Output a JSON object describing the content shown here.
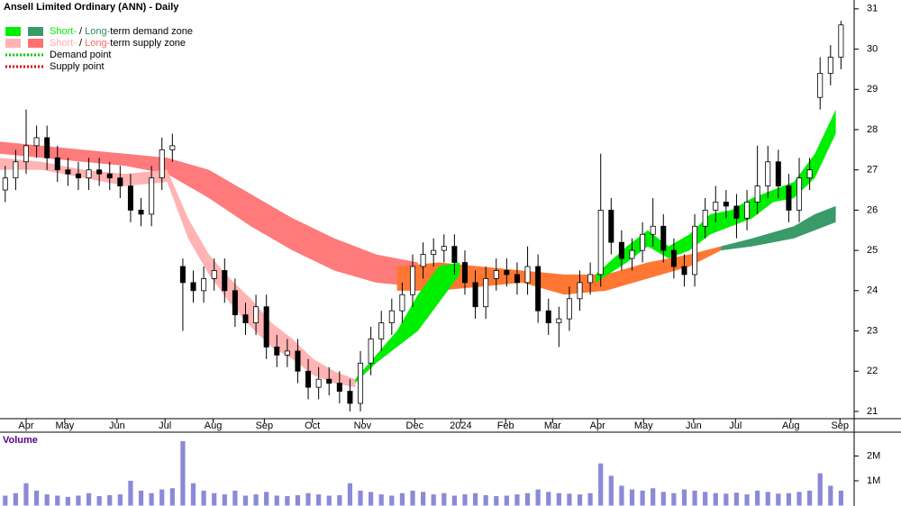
{
  "chart_data": {
    "type": "ohlc",
    "title": "Ansell Limited Ordinary (ANN) - Daily",
    "legend": [
      {
        "parts": [
          {
            "text": "Short-",
            "color": "#00ee00"
          },
          {
            "text": " / ",
            "color": "#000000"
          },
          {
            "text": "Long-",
            "color": "#2e8b57"
          },
          {
            "text": "term demand zone",
            "color": "#000000"
          }
        ],
        "swatches": [
          "#00ee00",
          "#3a9a6a"
        ]
      },
      {
        "parts": [
          {
            "text": "Short-",
            "color": "#ffaaaa"
          },
          {
            "text": " / ",
            "color": "#000000"
          },
          {
            "text": "Long-",
            "color": "#ff6666"
          },
          {
            "text": "term supply zone",
            "color": "#000000"
          }
        ],
        "swatches": [
          "#ffb3b3",
          "#ff7070"
        ]
      },
      {
        "parts": [
          {
            "text": "Demand point",
            "color": "#000000"
          }
        ],
        "dotted": "#00cc00"
      },
      {
        "parts": [
          {
            "text": "Supply point",
            "color": "#000000"
          }
        ],
        "dotted": "#dd0000"
      }
    ],
    "volume_label": "Volume",
    "xlim": [
      0,
      81.5
    ],
    "xticks": [
      {
        "value": 2.5,
        "label": "Apr"
      },
      {
        "value": 6.2,
        "label": "May"
      },
      {
        "value": 11.2,
        "label": "Jun"
      },
      {
        "value": 15.8,
        "label": "Jul"
      },
      {
        "value": 20.4,
        "label": "Aug"
      },
      {
        "value": 25.3,
        "label": "Sep"
      },
      {
        "value": 29.9,
        "label": "Oct"
      },
      {
        "value": 34.7,
        "label": "Nov"
      },
      {
        "value": 39.7,
        "label": "Dec"
      },
      {
        "value": 44.1,
        "label": "2024"
      },
      {
        "value": 48.4,
        "label": "Feb"
      },
      {
        "value": 52.9,
        "label": "Mar"
      },
      {
        "value": 57.2,
        "label": "Apr"
      },
      {
        "value": 61.6,
        "label": "May"
      },
      {
        "value": 66.4,
        "label": "Jun"
      },
      {
        "value": 70.4,
        "label": "Jul"
      },
      {
        "value": 75.7,
        "label": "Aug"
      },
      {
        "value": 80.4,
        "label": "Sep"
      }
    ],
    "ylim": [
      20.82,
      31.22
    ],
    "yticks": [
      21,
      22,
      23,
      24,
      25,
      26,
      27,
      28,
      29,
      30,
      31
    ],
    "vol_ylim": [
      0,
      2960000
    ],
    "vol_ticks": [
      {
        "value": 1000000,
        "label": "1M"
      },
      {
        "value": 2000000,
        "label": "2M"
      }
    ],
    "open": [
      26.5,
      26.8,
      27.2,
      27.6,
      27.8,
      27.3,
      27.0,
      26.9,
      26.8,
      27.0,
      26.9,
      26.8,
      26.6,
      26.0,
      25.9,
      26.8,
      27.5,
      24.6,
      24.2,
      24.0,
      24.3,
      24.5,
      24.0,
      23.4,
      23.2,
      23.6,
      22.6,
      22.4,
      22.5,
      22.0,
      21.6,
      21.8,
      21.7,
      21.5,
      21.2,
      22.2,
      22.8,
      23.2,
      23.5,
      23.9,
      24.6,
      24.9,
      25.0,
      25.1,
      24.7,
      24.2,
      23.6,
      24.3,
      24.5,
      24.4,
      24.2,
      24.6,
      23.5,
      23.2,
      23.3,
      23.8,
      24.2,
      24.4,
      26.0,
      25.2,
      24.8,
      25.0,
      25.4,
      25.6,
      25.0,
      24.6,
      24.4,
      25.6,
      26.0,
      26.2,
      26.1,
      25.8,
      26.2,
      26.6,
      27.2,
      26.6,
      26.0,
      26.8,
      28.8,
      29.4,
      29.8
    ],
    "high": [
      27.1,
      27.5,
      28.5,
      28.1,
      28.1,
      27.6,
      27.3,
      27.2,
      27.3,
      27.3,
      27.2,
      27.1,
      26.9,
      26.3,
      27.1,
      27.8,
      27.9,
      24.8,
      24.5,
      24.6,
      24.8,
      24.8,
      24.3,
      23.7,
      23.9,
      23.9,
      22.9,
      22.8,
      22.8,
      22.3,
      22.1,
      22.1,
      22.0,
      21.8,
      22.5,
      23.1,
      23.5,
      23.8,
      24.2,
      24.9,
      25.2,
      25.3,
      25.4,
      25.4,
      25.0,
      24.5,
      24.6,
      24.8,
      24.8,
      24.7,
      25.1,
      24.9,
      23.8,
      23.6,
      24.1,
      24.5,
      24.7,
      27.4,
      26.3,
      25.5,
      25.3,
      25.7,
      26.3,
      25.9,
      25.3,
      24.9,
      25.9,
      26.3,
      26.6,
      26.5,
      26.4,
      26.5,
      27.6,
      27.6,
      27.5,
      26.9,
      27.3,
      27.3,
      29.8,
      30.1,
      30.7
    ],
    "low": [
      26.2,
      26.5,
      26.9,
      27.3,
      27.0,
      26.7,
      26.6,
      26.5,
      26.5,
      26.6,
      26.5,
      26.3,
      25.7,
      25.6,
      25.6,
      26.5,
      27.2,
      23.0,
      23.7,
      23.7,
      24.0,
      23.7,
      23.1,
      22.9,
      22.9,
      22.3,
      22.1,
      22.1,
      21.7,
      21.3,
      21.3,
      21.4,
      21.2,
      21.0,
      21.0,
      21.9,
      22.5,
      22.9,
      23.2,
      23.6,
      24.3,
      24.6,
      24.7,
      24.4,
      23.9,
      23.3,
      23.3,
      24.0,
      24.1,
      23.9,
      23.9,
      23.2,
      22.9,
      22.6,
      23.0,
      23.5,
      23.9,
      24.1,
      24.9,
      24.5,
      24.5,
      24.7,
      25.1,
      24.7,
      24.3,
      24.1,
      24.1,
      25.3,
      25.7,
      25.8,
      25.3,
      25.5,
      25.9,
      26.3,
      26.3,
      25.7,
      25.7,
      26.5,
      28.5,
      29.1,
      29.5
    ],
    "close": [
      26.8,
      27.2,
      27.6,
      27.8,
      27.3,
      27.0,
      26.9,
      26.8,
      27.0,
      26.9,
      26.8,
      26.6,
      26.0,
      25.9,
      26.8,
      27.5,
      27.6,
      24.2,
      24.0,
      24.3,
      24.5,
      24.0,
      23.4,
      23.2,
      23.6,
      22.6,
      22.4,
      22.5,
      22.0,
      21.6,
      21.8,
      21.7,
      21.5,
      21.2,
      22.2,
      22.8,
      23.2,
      23.5,
      23.9,
      24.6,
      24.9,
      25.0,
      25.1,
      24.7,
      24.2,
      23.6,
      24.3,
      24.5,
      24.4,
      24.2,
      24.6,
      23.5,
      23.2,
      23.3,
      23.8,
      24.2,
      24.4,
      26.0,
      25.2,
      24.8,
      25.0,
      25.4,
      25.6,
      25.0,
      24.6,
      24.4,
      25.6,
      26.0,
      26.2,
      26.1,
      25.8,
      26.2,
      26.6,
      27.2,
      26.6,
      26.0,
      26.8,
      27.0,
      29.4,
      29.8,
      30.6
    ],
    "volume": [
      400000,
      500000,
      900000,
      600000,
      450000,
      400000,
      350000,
      400000,
      500000,
      380000,
      420000,
      450000,
      1000000,
      600000,
      500000,
      650000,
      700000,
      2600000,
      900000,
      600000,
      500000,
      450000,
      600000,
      400000,
      450000,
      550000,
      400000,
      380000,
      420000,
      500000,
      450000,
      400000,
      420000,
      900000,
      600000,
      550000,
      450000,
      400000,
      500000,
      600000,
      550000,
      450000,
      500000,
      400000,
      450000,
      500000,
      420000,
      380000,
      400000,
      450000,
      500000,
      650000,
      550000,
      500000,
      480000,
      450000,
      500000,
      1700000,
      1200000,
      800000,
      650000,
      600000,
      700000,
      550000,
      500000,
      650000,
      600000,
      550000,
      500000,
      480000,
      520000,
      450000,
      600000,
      550000,
      480000,
      500000,
      550000,
      600000,
      1300000,
      800000,
      600000
    ],
    "zones": [
      {
        "name": "Long-term supply zone",
        "color": "#ff7a7a",
        "x": [
          0,
          4,
          8,
          12,
          16,
          20,
          24,
          28,
          32,
          36,
          40
        ],
        "upper": [
          27.7,
          27.6,
          27.5,
          27.4,
          27.3,
          27.0,
          26.4,
          25.8,
          25.3,
          24.9,
          24.7
        ],
        "lower": [
          27.4,
          27.3,
          27.2,
          27.1,
          26.9,
          26.3,
          25.6,
          25.0,
          24.5,
          24.2,
          24.1
        ]
      },
      {
        "name": "Short-term supply zone",
        "color": "#ffb3b3",
        "x": [
          0,
          4,
          8,
          12,
          16,
          18,
          20,
          22,
          24,
          26,
          28,
          30,
          32,
          34
        ],
        "upper": [
          27.3,
          27.2,
          27.0,
          26.9,
          27.0,
          25.8,
          24.9,
          24.3,
          23.8,
          23.2,
          22.8,
          22.3,
          22.0,
          21.8
        ],
        "lower": [
          27.0,
          27.0,
          26.8,
          26.6,
          26.7,
          25.3,
          24.4,
          23.7,
          23.1,
          22.6,
          22.3,
          21.9,
          21.7,
          21.6
        ]
      },
      {
        "color": "#ff7733",
        "x": [
          38,
          42,
          46,
          50,
          54,
          58,
          62,
          66,
          69
        ],
        "upper": [
          24.6,
          24.7,
          24.6,
          24.5,
          24.4,
          24.4,
          24.7,
          24.9,
          25.1
        ],
        "lower": [
          24.0,
          24.0,
          24.1,
          24.2,
          23.9,
          24.0,
          24.3,
          24.6,
          25.0
        ]
      },
      {
        "name": "Long-term demand zone",
        "color": "#3a9a6a",
        "x": [
          69,
          72,
          76,
          78,
          80
        ],
        "upper": [
          25.1,
          25.3,
          25.6,
          25.9,
          26.1
        ],
        "lower": [
          25.0,
          25.1,
          25.3,
          25.5,
          25.7
        ]
      },
      {
        "name": "Short-term demand zone",
        "color": "#00ee00",
        "x": [
          34,
          36,
          38,
          40,
          42,
          44,
          50,
          57,
          60,
          62,
          64,
          66,
          68,
          70,
          72,
          74,
          76,
          78,
          80
        ],
        "upper": [
          21.8,
          22.4,
          23.0,
          23.9,
          24.6,
          24.7,
          null,
          24.4,
          25.1,
          25.5,
          25.1,
          25.4,
          25.9,
          26.0,
          26.3,
          26.5,
          26.7,
          27.4,
          28.5
        ],
        "lower": [
          21.7,
          22.2,
          22.6,
          23.0,
          23.7,
          24.4,
          null,
          24.2,
          24.7,
          25.1,
          24.8,
          25.0,
          25.4,
          25.6,
          25.8,
          26.2,
          26.3,
          26.8,
          27.9
        ]
      }
    ]
  }
}
